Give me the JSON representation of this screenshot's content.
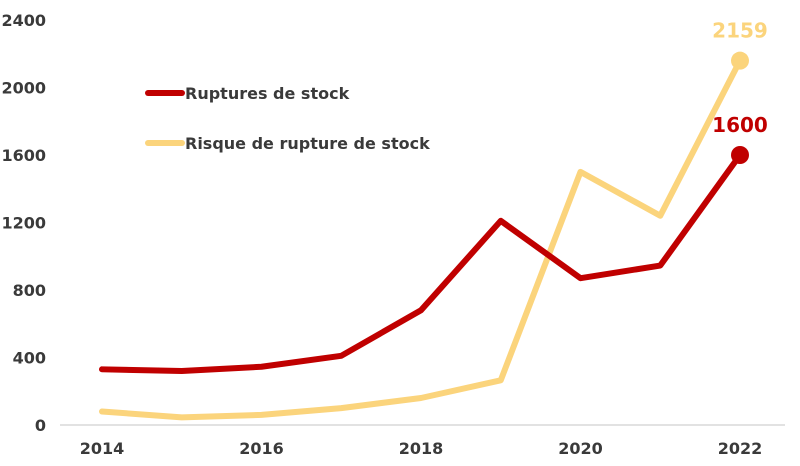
{
  "chart_data": {
    "type": "line",
    "x": [
      2014,
      2015,
      2016,
      2017,
      2018,
      2019,
      2020,
      2021,
      2022
    ],
    "x_tick_labels": [
      "2014",
      "2016",
      "2018",
      "2020",
      "2022"
    ],
    "x_ticks": [
      2014,
      2016,
      2018,
      2020,
      2022
    ],
    "ylim": [
      0,
      2400
    ],
    "y_ticks": [
      0,
      400,
      800,
      1200,
      1600,
      2000,
      2400
    ],
    "grid": false,
    "legend_position": "upper-left",
    "series": [
      {
        "name": "Ruptures de stock",
        "color": "#c00000",
        "values": [
          330,
          320,
          345,
          410,
          680,
          1210,
          870,
          945,
          1600
        ],
        "end_label": "1600"
      },
      {
        "name": "Risque de rupture de stock",
        "color": "#fbd47c",
        "values": [
          80,
          45,
          60,
          100,
          160,
          265,
          1500,
          1240,
          2159
        ],
        "end_label": "2159"
      }
    ]
  }
}
